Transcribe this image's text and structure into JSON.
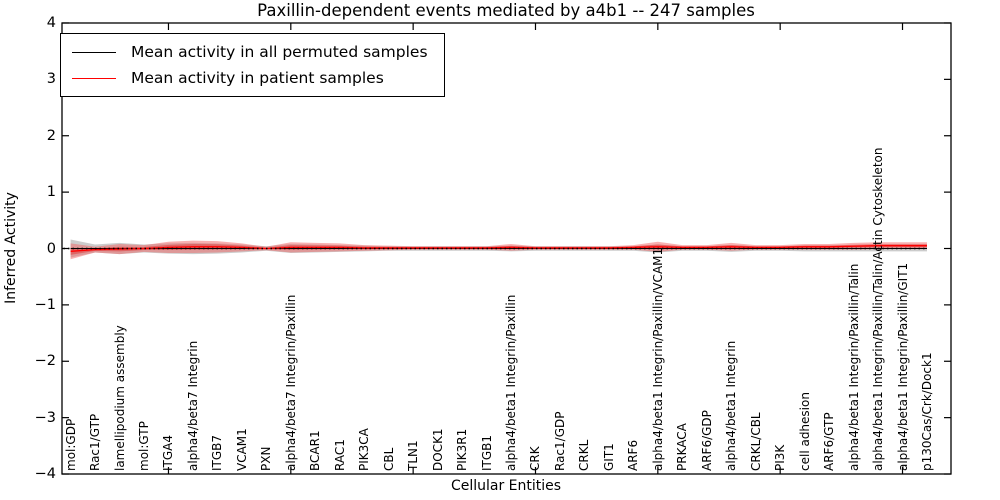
{
  "figure_title": "Paxillin-dependent events mediated by a4b1 -- 247 samples",
  "legend": {
    "items": [
      {
        "label": "Mean activity in all permuted samples",
        "color": "#000000"
      },
      {
        "label": "Mean activity in patient samples",
        "color": "#ff0000"
      }
    ]
  },
  "chart_data": {
    "type": "line",
    "title": "Paxillin-dependent events mediated by a4b1 -- 247 samples",
    "xlabel": "Cellular Entities",
    "ylabel": "Inferred Activity",
    "ylim": [
      -4,
      4
    ],
    "yticks": [
      4,
      3,
      2,
      1,
      0,
      -1,
      -2,
      -3,
      -4
    ],
    "xtick_data_positions": [
      5,
      10,
      15,
      20,
      25,
      30,
      35
    ],
    "grid": false,
    "legend_position": "upper left",
    "categories": [
      "mol:GDP",
      "Rac1/GTP",
      "lamellipodium assembly",
      "mol:GTP",
      "ITGA4",
      "alpha4/beta7 Integrin",
      "ITGB7",
      "VCAM1",
      "PXN",
      "alpha4/beta7 Integrin/Paxillin",
      "BCAR1",
      "RAC1",
      "PIK3CA",
      "CBL",
      "TLN1",
      "DOCK1",
      "PIK3R1",
      "ITGB1",
      "alpha4/beta1 Integrin/Paxillin",
      "CRK",
      "Rac1/GDP",
      "CRKL",
      "GIT1",
      "ARF6",
      "alpha4/beta1 Integrin/Paxillin/VCAM1",
      "PRKACA",
      "ARF6/GDP",
      "alpha4/beta1 Integrin",
      "CRKL/CBL",
      "PI3K",
      "cell adhesion",
      "ARF6/GTP",
      "alpha4/beta1 Integrin/Paxillin/Talin",
      "alpha4/beta1 Integrin/Paxillin/Talin/Actin Cytoskeleton",
      "alpha4/beta1 Integrin/Paxillin/GIT1",
      "p130Cas/Crk/Dock1"
    ],
    "series": [
      {
        "name": "Mean activity in all permuted samples",
        "color": "#000000",
        "values": [
          0.0,
          0.0,
          0.0,
          0.0,
          0.0,
          0.0,
          0.0,
          0.0,
          0.0,
          0.0,
          0.0,
          0.0,
          0.0,
          0.0,
          0.0,
          0.0,
          0.0,
          0.0,
          0.0,
          0.0,
          0.0,
          0.0,
          0.0,
          0.0,
          0.0,
          0.0,
          0.0,
          0.0,
          0.0,
          0.0,
          0.0,
          0.0,
          0.0,
          0.0,
          0.0,
          0.0
        ],
        "band_halfwidth": [
          0.16,
          0.07,
          0.1,
          0.07,
          0.09,
          0.1,
          0.09,
          0.07,
          0.04,
          0.08,
          0.07,
          0.06,
          0.05,
          0.04,
          0.04,
          0.04,
          0.04,
          0.04,
          0.05,
          0.04,
          0.04,
          0.04,
          0.04,
          0.04,
          0.07,
          0.04,
          0.04,
          0.06,
          0.04,
          0.04,
          0.05,
          0.05,
          0.05,
          0.05,
          0.05,
          0.05
        ]
      },
      {
        "name": "Mean activity in patient samples",
        "color": "#ff0000",
        "values": [
          -0.05,
          -0.02,
          -0.01,
          0.0,
          0.02,
          0.03,
          0.03,
          0.02,
          0.0,
          0.02,
          0.02,
          0.02,
          0.01,
          0.01,
          0.01,
          0.01,
          0.01,
          0.01,
          0.02,
          0.01,
          0.01,
          0.01,
          0.01,
          0.02,
          0.03,
          0.02,
          0.02,
          0.03,
          0.02,
          0.02,
          0.03,
          0.03,
          0.04,
          0.05,
          0.05,
          0.05
        ],
        "band_halfwidth": [
          0.14,
          0.05,
          0.09,
          0.06,
          0.1,
          0.11,
          0.1,
          0.07,
          0.03,
          0.09,
          0.08,
          0.07,
          0.05,
          0.04,
          0.03,
          0.03,
          0.03,
          0.03,
          0.06,
          0.03,
          0.03,
          0.03,
          0.03,
          0.04,
          0.09,
          0.04,
          0.04,
          0.07,
          0.04,
          0.04,
          0.05,
          0.05,
          0.06,
          0.06,
          0.06,
          0.06
        ]
      }
    ],
    "zero_line": {
      "style": "dotted",
      "color": "#000000",
      "y": 0
    },
    "colors": {
      "patient_line": "#ff0000",
      "patient_band": "rgba(240,100,100,0.50)",
      "patient_band_core": "rgba(222,60,60,0.55)",
      "permuted_line": "#000000",
      "permuted_band": "rgba(128,128,128,0.40)",
      "axis": "#000000"
    }
  }
}
